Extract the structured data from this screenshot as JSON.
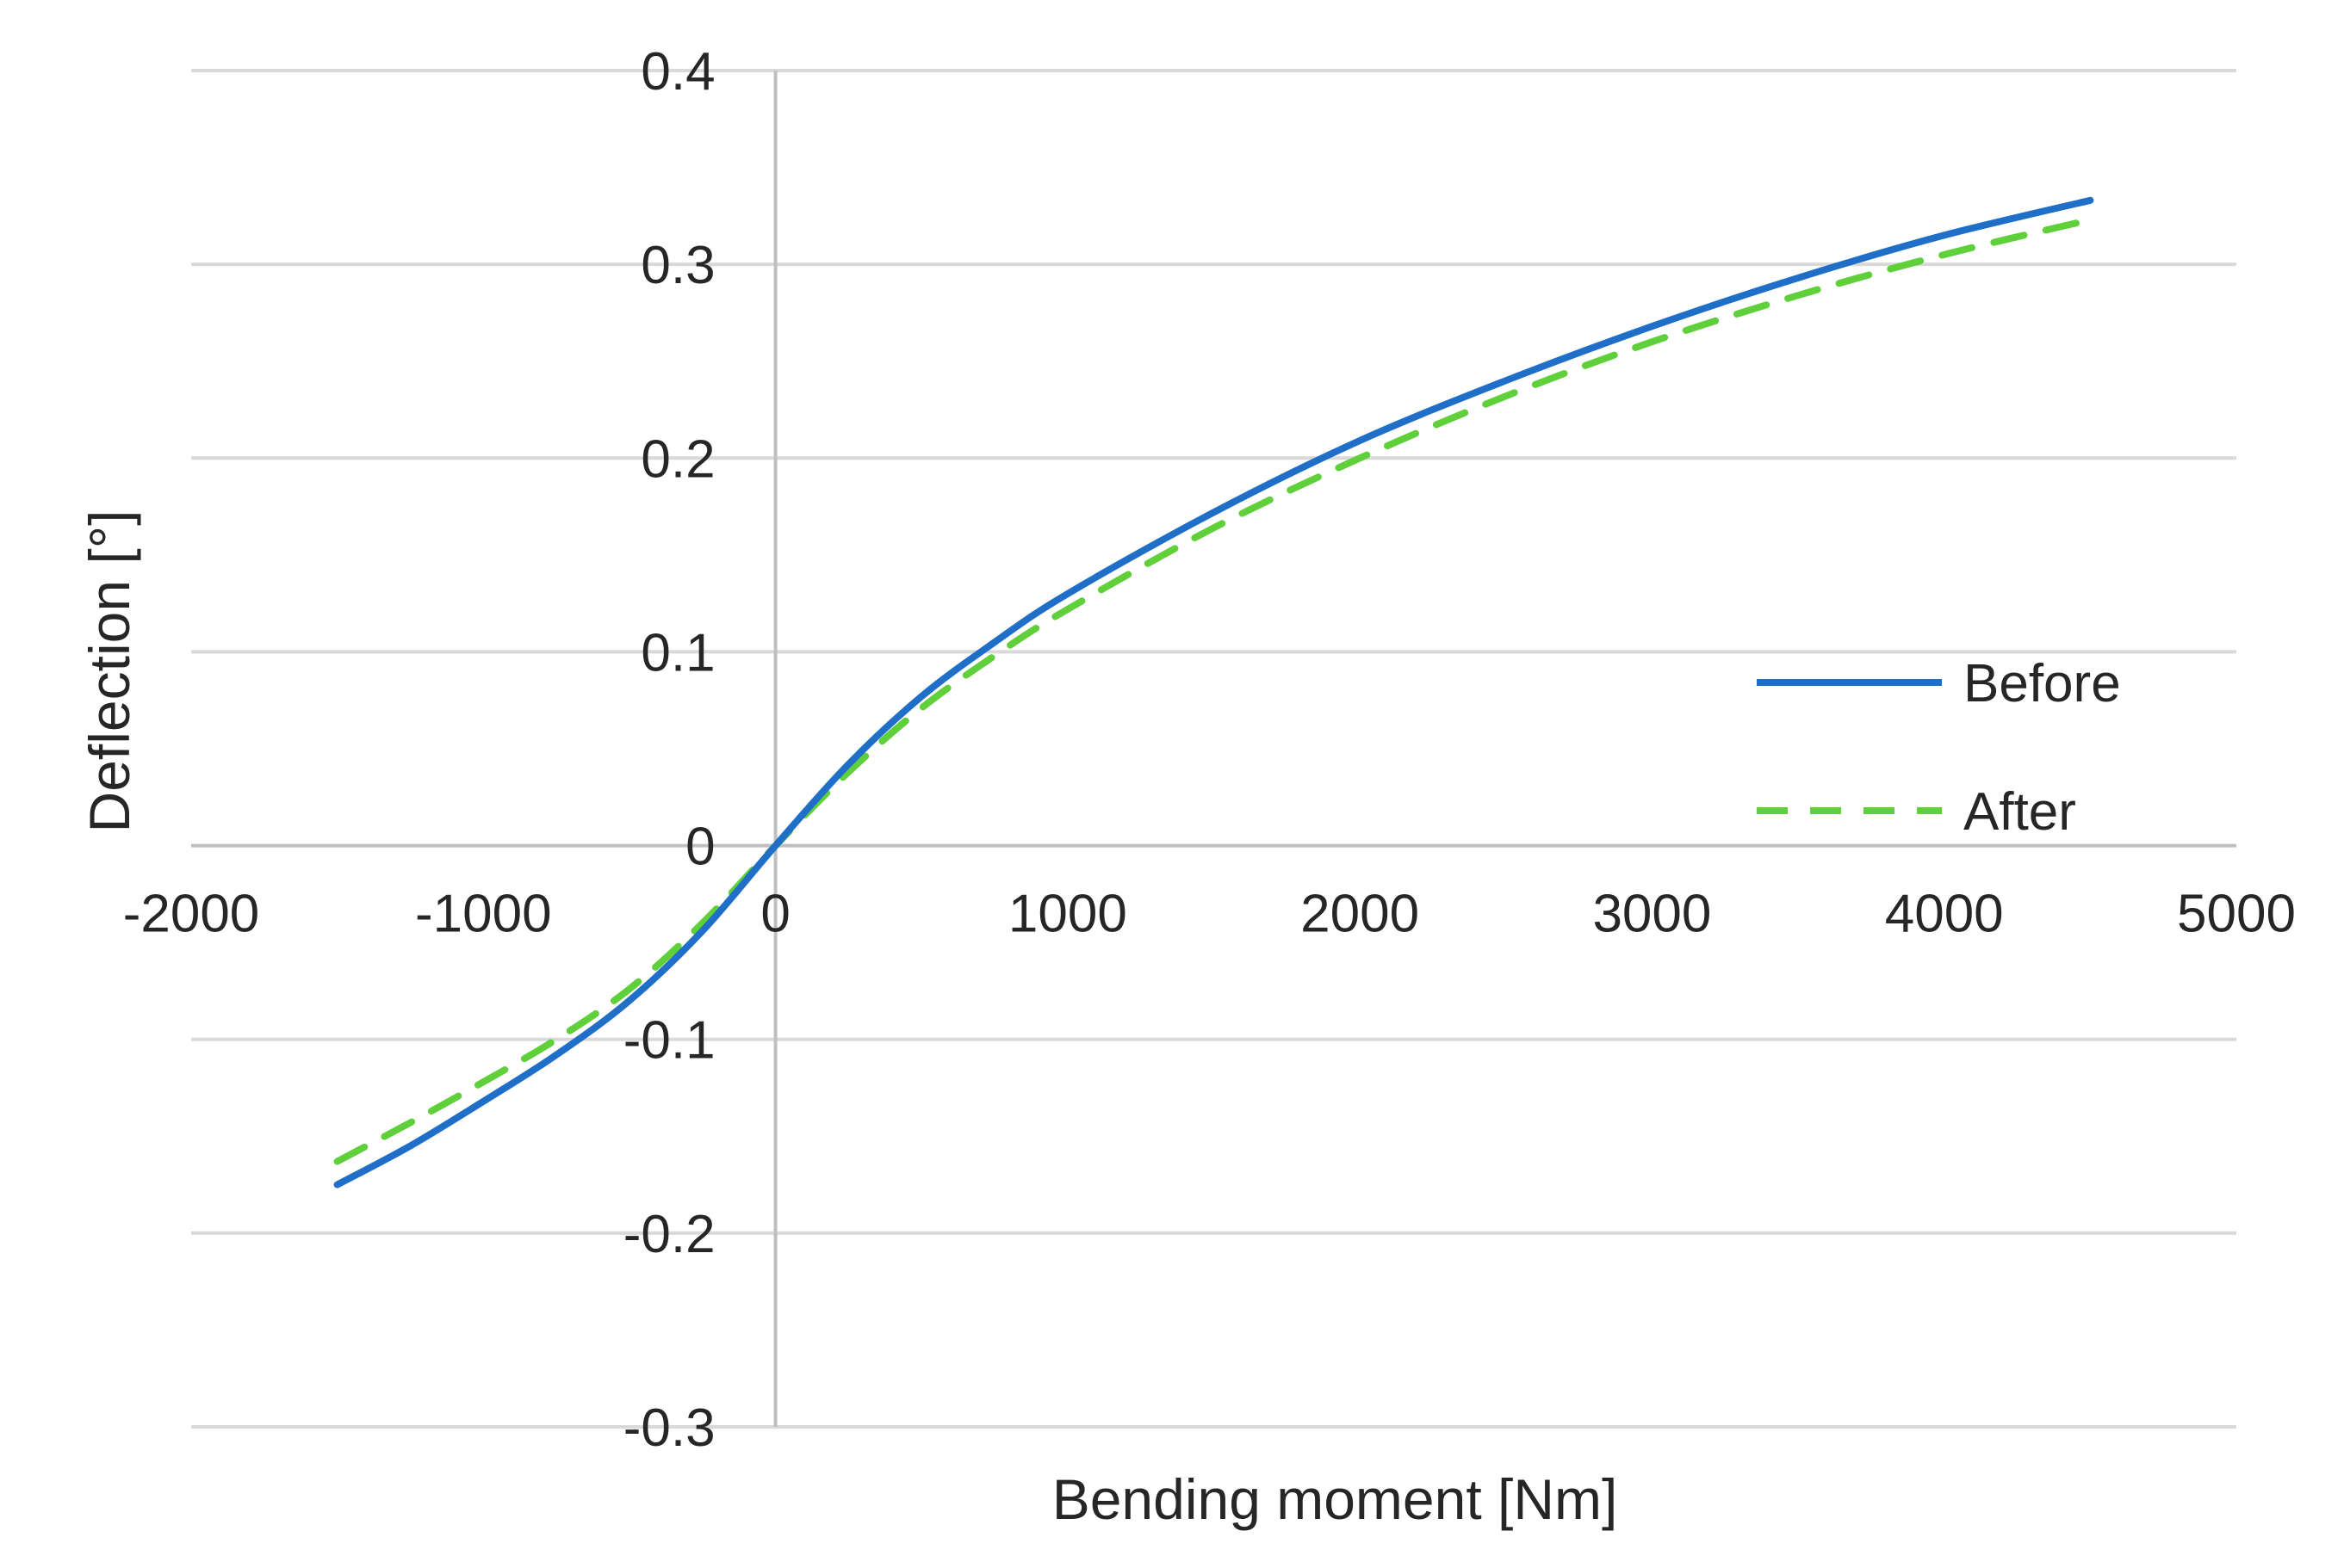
{
  "chart_data": {
    "type": "line",
    "title": "",
    "xlabel": "Bending moment [Nm]",
    "ylabel": "Deflection  [°]",
    "xlim": [
      -2000,
      5000
    ],
    "ylim": [
      -0.3,
      0.4
    ],
    "xticks": [
      -2000,
      -1000,
      0,
      1000,
      2000,
      3000,
      4000,
      5000
    ],
    "yticks": [
      -0.3,
      -0.2,
      -0.1,
      0,
      0.1,
      0.2,
      0.3,
      0.4
    ],
    "xtick_labels": [
      "-2000",
      "-1000",
      "0",
      "1000",
      "2000",
      "3000",
      "4000",
      "5000"
    ],
    "ytick_labels": [
      "-0.3",
      "-0.2",
      "-0.1",
      "0",
      "0.1",
      "0.2",
      "0.3",
      "0.4"
    ],
    "grid": "horizontal",
    "legend_position": "right",
    "series": [
      {
        "name": "Before",
        "color": "#1f6fc8",
        "style": "solid",
        "x": [
          -1500,
          -1250,
          -1000,
          -750,
          -500,
          -250,
          0,
          250,
          500,
          750,
          1000,
          1500,
          2000,
          2500,
          3000,
          3500,
          4000,
          4500
        ],
        "y": [
          -0.175,
          -0.155,
          -0.132,
          -0.108,
          -0.08,
          -0.044,
          0.0,
          0.042,
          0.077,
          0.105,
          0.13,
          0.172,
          0.209,
          0.24,
          0.268,
          0.293,
          0.315,
          0.333
        ]
      },
      {
        "name": "After",
        "color": "#5fcf3a",
        "style": "dashed",
        "x": [
          -1500,
          -1250,
          -1000,
          -750,
          -500,
          -250,
          0,
          250,
          500,
          750,
          1000,
          1500,
          2000,
          2500,
          3000,
          3500,
          4000,
          4500
        ],
        "y": [
          -0.163,
          -0.143,
          -0.122,
          -0.1,
          -0.074,
          -0.04,
          0.0,
          0.038,
          0.071,
          0.098,
          0.122,
          0.164,
          0.2,
          0.232,
          0.26,
          0.284,
          0.305,
          0.323
        ]
      }
    ]
  }
}
